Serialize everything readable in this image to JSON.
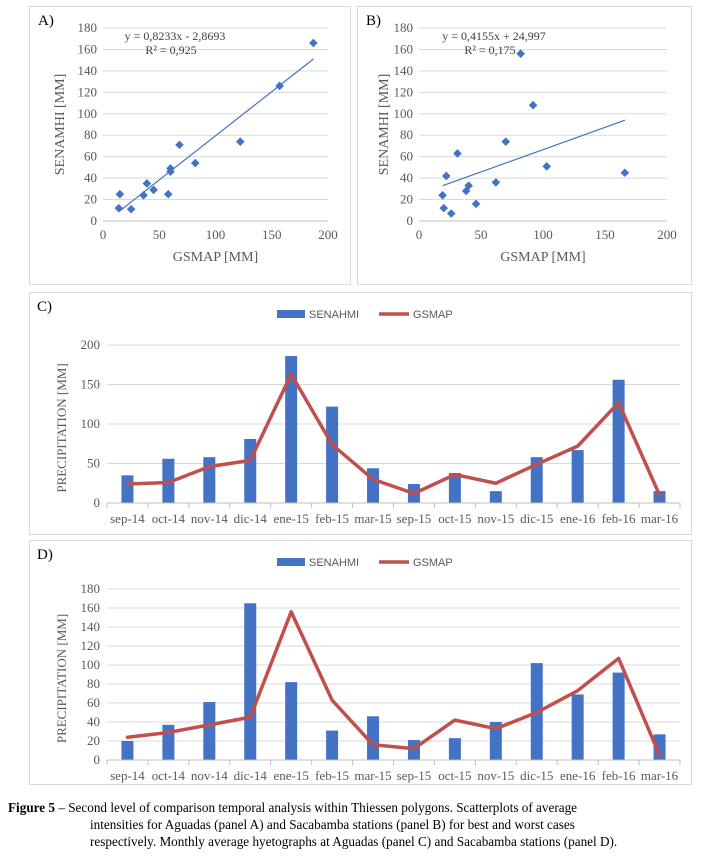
{
  "chart_data": [
    {
      "type": "scatter",
      "panel_label": "A)",
      "xlabel": "GSMAP [MM]",
      "ylabel": "SENAMHI [MM]",
      "xlim": [
        0,
        200
      ],
      "ylim": [
        0,
        180
      ],
      "xticks": [
        0,
        50,
        100,
        150,
        200
      ],
      "yticks": [
        0,
        20,
        40,
        60,
        80,
        100,
        120,
        140,
        160,
        180
      ],
      "grid": "horizontal",
      "equation": "y = 0,8233x - 2,8693",
      "r2": "R² = 0,925",
      "trendline": {
        "slope": 0.8233,
        "intercept": -2.8693,
        "x_range": [
          14,
          187
        ]
      },
      "color": "#4472c4",
      "points": [
        {
          "x": 14,
          "y": 12
        },
        {
          "x": 15,
          "y": 25
        },
        {
          "x": 25,
          "y": 11
        },
        {
          "x": 36,
          "y": 24
        },
        {
          "x": 39,
          "y": 35
        },
        {
          "x": 45,
          "y": 29
        },
        {
          "x": 58,
          "y": 25
        },
        {
          "x": 60,
          "y": 46
        },
        {
          "x": 60,
          "y": 49
        },
        {
          "x": 68,
          "y": 71
        },
        {
          "x": 82,
          "y": 54
        },
        {
          "x": 122,
          "y": 74
        },
        {
          "x": 157,
          "y": 126
        },
        {
          "x": 187,
          "y": 166
        }
      ]
    },
    {
      "type": "scatter",
      "panel_label": "B)",
      "xlabel": "GSMAP [MM]",
      "ylabel": "SENAMHI [MM]",
      "xlim": [
        0,
        200
      ],
      "ylim": [
        0,
        180
      ],
      "xticks": [
        0,
        50,
        100,
        150,
        200
      ],
      "yticks": [
        0,
        20,
        40,
        60,
        80,
        100,
        120,
        140,
        160,
        180
      ],
      "grid": "horizontal",
      "equation": "y = 0,4155x + 24,997",
      "r2": "R² = 0,175",
      "trendline": {
        "slope": 0.4155,
        "intercept": 24.997,
        "x_range": [
          19,
          166
        ]
      },
      "color": "#4472c4",
      "points": [
        {
          "x": 19,
          "y": 24
        },
        {
          "x": 20,
          "y": 12
        },
        {
          "x": 22,
          "y": 42
        },
        {
          "x": 26,
          "y": 7
        },
        {
          "x": 31,
          "y": 63
        },
        {
          "x": 38,
          "y": 28
        },
        {
          "x": 40,
          "y": 33
        },
        {
          "x": 46,
          "y": 16
        },
        {
          "x": 62,
          "y": 36
        },
        {
          "x": 70,
          "y": 74
        },
        {
          "x": 82,
          "y": 156
        },
        {
          "x": 92,
          "y": 108
        },
        {
          "x": 103,
          "y": 51
        },
        {
          "x": 166,
          "y": 45
        }
      ]
    },
    {
      "type": "bar+line",
      "panel_label": "C)",
      "ylabel": "PRECIPITATION [MM]",
      "ylim": [
        0,
        200
      ],
      "yticks": [
        0,
        50,
        100,
        150,
        200
      ],
      "grid": "horizontal",
      "legend": "top-center",
      "categories": [
        "sep-14",
        "oct-14",
        "nov-14",
        "dic-14",
        "ene-15",
        "feb-15",
        "mar-15",
        "sep-15",
        "oct-15",
        "nov-15",
        "dic-15",
        "ene-16",
        "feb-16",
        "mar-16"
      ],
      "series": [
        {
          "name": "SENAHMI",
          "kind": "bar",
          "color": "#4472c4",
          "values": [
            35,
            56,
            58,
            81,
            186,
            122,
            44,
            24,
            38,
            15,
            58,
            67,
            156,
            15
          ]
        },
        {
          "name": "GSMAP",
          "kind": "line",
          "color": "#c0504d",
          "values": [
            24,
            26,
            46,
            54,
            163,
            74,
            30,
            12,
            36,
            25,
            49,
            72,
            127,
            10
          ]
        }
      ]
    },
    {
      "type": "bar+line",
      "panel_label": "D)",
      "ylabel": "PRECIPITATION [MM]",
      "ylim": [
        0,
        180
      ],
      "yticks": [
        0,
        20,
        40,
        60,
        80,
        100,
        120,
        140,
        160,
        180
      ],
      "grid": "horizontal",
      "legend": "top-center",
      "categories": [
        "sep-14",
        "oct-14",
        "nov-14",
        "dic-14",
        "ene-15",
        "feb-15",
        "mar-15",
        "sep-15",
        "oct-15",
        "nov-15",
        "dic-15",
        "ene-16",
        "feb-16",
        "mar-16"
      ],
      "series": [
        {
          "name": "SENAHMI",
          "kind": "bar",
          "color": "#4472c4",
          "values": [
            20,
            37,
            61,
            165,
            82,
            31,
            46,
            21,
            23,
            40,
            102,
            69,
            92,
            27
          ]
        },
        {
          "name": "GSMAP",
          "kind": "line",
          "color": "#c0504d",
          "values": [
            24,
            29,
            37,
            45,
            156,
            63,
            16,
            12,
            42,
            33,
            50,
            73,
            107,
            5
          ]
        }
      ]
    }
  ],
  "caption": {
    "head": "Figure 5",
    "line1": " – Second level of comparison temporal analysis within Thiessen polygons. Scatterplots of average",
    "line2": "intensities for Aguadas (panel A) and Sacabamba stations (panel B) for best and worst cases",
    "line3": "respectively. Monthly average hyetographs at Aguadas (panel C) and Sacabamba stations (panel D)."
  }
}
